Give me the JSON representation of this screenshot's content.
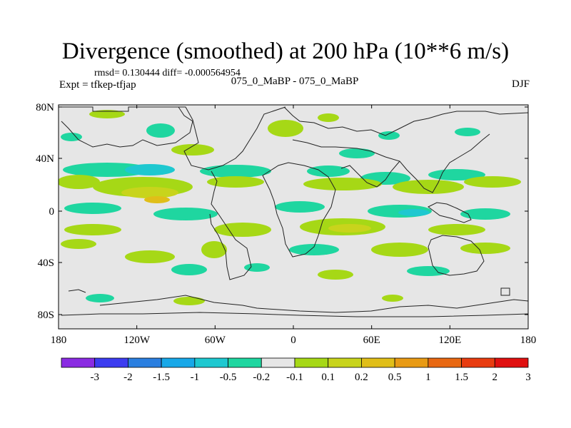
{
  "title": "Divergence (smoothed) at 200 hPa (10**6 m/s)",
  "stats": "rmsd= 0.130444 diff= -0.000564954",
  "experiment": "Expt = tfkep-tfjap",
  "comparison": "075_0_MaBP - 075_0_MaBP",
  "season": "DJF",
  "lat_labels": [
    "80N",
    "40N",
    "0",
    "40S",
    "80S"
  ],
  "lon_labels": [
    "180",
    "120W",
    "60W",
    "0",
    "60E",
    "120E",
    "180"
  ],
  "colorbar": {
    "colors": [
      "#8a2be2",
      "#3c3cf0",
      "#2a7fe0",
      "#18a8e8",
      "#1ec8d0",
      "#1fd6a0",
      "#e6e6e6",
      "#a6d816",
      "#c8d41c",
      "#e0be18",
      "#e89a14",
      "#e86812",
      "#e83c10",
      "#e01010"
    ],
    "labels": [
      "-3",
      "-2",
      "-1.5",
      "-1",
      "-0.5",
      "-0.2",
      "-0.1",
      "0.1",
      "0.2",
      "0.5",
      "1",
      "1.5",
      "2",
      "3"
    ]
  }
}
